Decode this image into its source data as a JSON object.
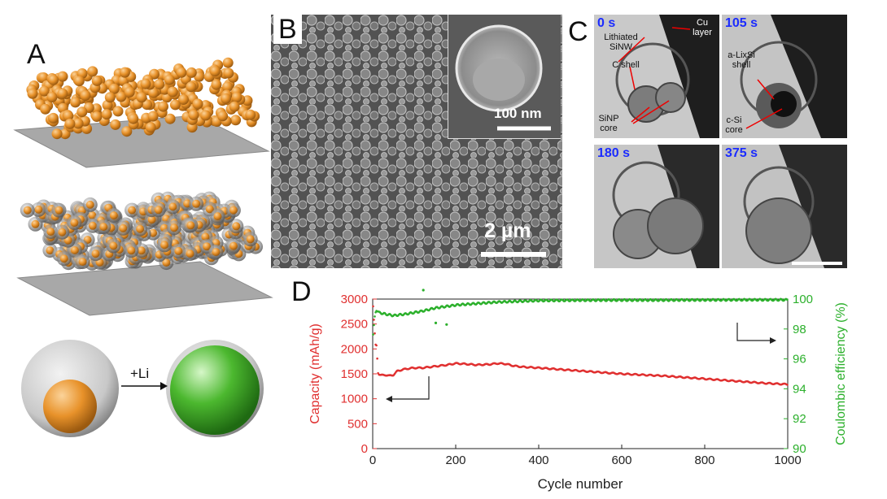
{
  "panels": {
    "a": "A",
    "b": "B",
    "c": "C",
    "d": "D"
  },
  "panel_a": {
    "lithiation_label": "+Li",
    "colors": {
      "core_orange": "#e8922a",
      "lithiated_green": "#4cb82f",
      "substrate": "#a8a8a8",
      "shell": "#cfcfcf"
    }
  },
  "panel_b": {
    "scale_main": "2 µm",
    "scale_inset": "100 nm"
  },
  "panel_c": {
    "frames": [
      {
        "time": "0 s"
      },
      {
        "time": "105 s"
      },
      {
        "time": "180 s"
      },
      {
        "time": "375 s"
      }
    ],
    "labels": {
      "lithiated_sinw": "Lithiated SiNW",
      "cu_layer": "Cu layer",
      "c_shell": "C shell",
      "sinp_core": "SiNP core",
      "a_lisi_shell": "a-LixSi shell",
      "c_si_core": "c-Si core"
    }
  },
  "chart_data": {
    "type": "scatter",
    "xlabel": "Cycle number",
    "ylabel_left": "Capacity (mAh/g)",
    "ylabel_right": "Coulombic efficiency (%)",
    "xlim": [
      0,
      1000
    ],
    "ylim_left": [
      0,
      3000
    ],
    "ylim_right": [
      90,
      100
    ],
    "x_ticks": [
      "0",
      "200",
      "400",
      "600",
      "800",
      "1000"
    ],
    "y_ticks_left": [
      "0",
      "500",
      "1000",
      "1500",
      "2000",
      "2500",
      "3000"
    ],
    "y_ticks_right": [
      "90",
      "92",
      "94",
      "96",
      "98",
      "100"
    ],
    "series": [
      {
        "axis": "left",
        "color": "#e03030",
        "points": [
          [
            1,
            2850
          ],
          [
            2,
            2650
          ],
          [
            4,
            2500
          ],
          [
            6,
            2100
          ],
          [
            8,
            2060
          ],
          [
            10,
            2080
          ],
          [
            12,
            1550
          ],
          [
            14,
            1500
          ],
          [
            20,
            1470
          ],
          [
            30,
            1480
          ],
          [
            40,
            1460
          ],
          [
            50,
            1480
          ],
          [
            60,
            1560
          ],
          [
            80,
            1600
          ],
          [
            100,
            1620
          ],
          [
            120,
            1620
          ],
          [
            150,
            1650
          ],
          [
            180,
            1680
          ],
          [
            200,
            1710
          ],
          [
            220,
            1700
          ],
          [
            250,
            1680
          ],
          [
            280,
            1690
          ],
          [
            300,
            1710
          ],
          [
            320,
            1700
          ],
          [
            340,
            1660
          ],
          [
            360,
            1640
          ],
          [
            400,
            1620
          ],
          [
            450,
            1590
          ],
          [
            500,
            1560
          ],
          [
            550,
            1530
          ],
          [
            600,
            1500
          ],
          [
            650,
            1480
          ],
          [
            700,
            1460
          ],
          [
            750,
            1430
          ],
          [
            800,
            1400
          ],
          [
            850,
            1370
          ],
          [
            900,
            1340
          ],
          [
            950,
            1310
          ],
          [
            1000,
            1290
          ]
        ]
      },
      {
        "axis": "right",
        "color": "#2cb02c",
        "points": [
          [
            1,
            97.6
          ],
          [
            3,
            98.2
          ],
          [
            5,
            98.8
          ],
          [
            8,
            99.3
          ],
          [
            15,
            99.1
          ],
          [
            30,
            99.0
          ],
          [
            50,
            98.9
          ],
          [
            80,
            99.0
          ],
          [
            120,
            99.2
          ],
          [
            150,
            99.4
          ],
          [
            200,
            99.6
          ],
          [
            250,
            99.7
          ],
          [
            300,
            99.8
          ],
          [
            350,
            99.85
          ],
          [
            400,
            99.9
          ],
          [
            500,
            99.92
          ],
          [
            600,
            99.93
          ],
          [
            700,
            99.93
          ],
          [
            800,
            99.94
          ],
          [
            900,
            99.95
          ],
          [
            1000,
            99.95
          ]
        ],
        "outliers": [
          [
            122,
            100.6
          ],
          [
            152,
            98.4
          ],
          [
            178,
            98.3
          ]
        ]
      }
    ]
  }
}
